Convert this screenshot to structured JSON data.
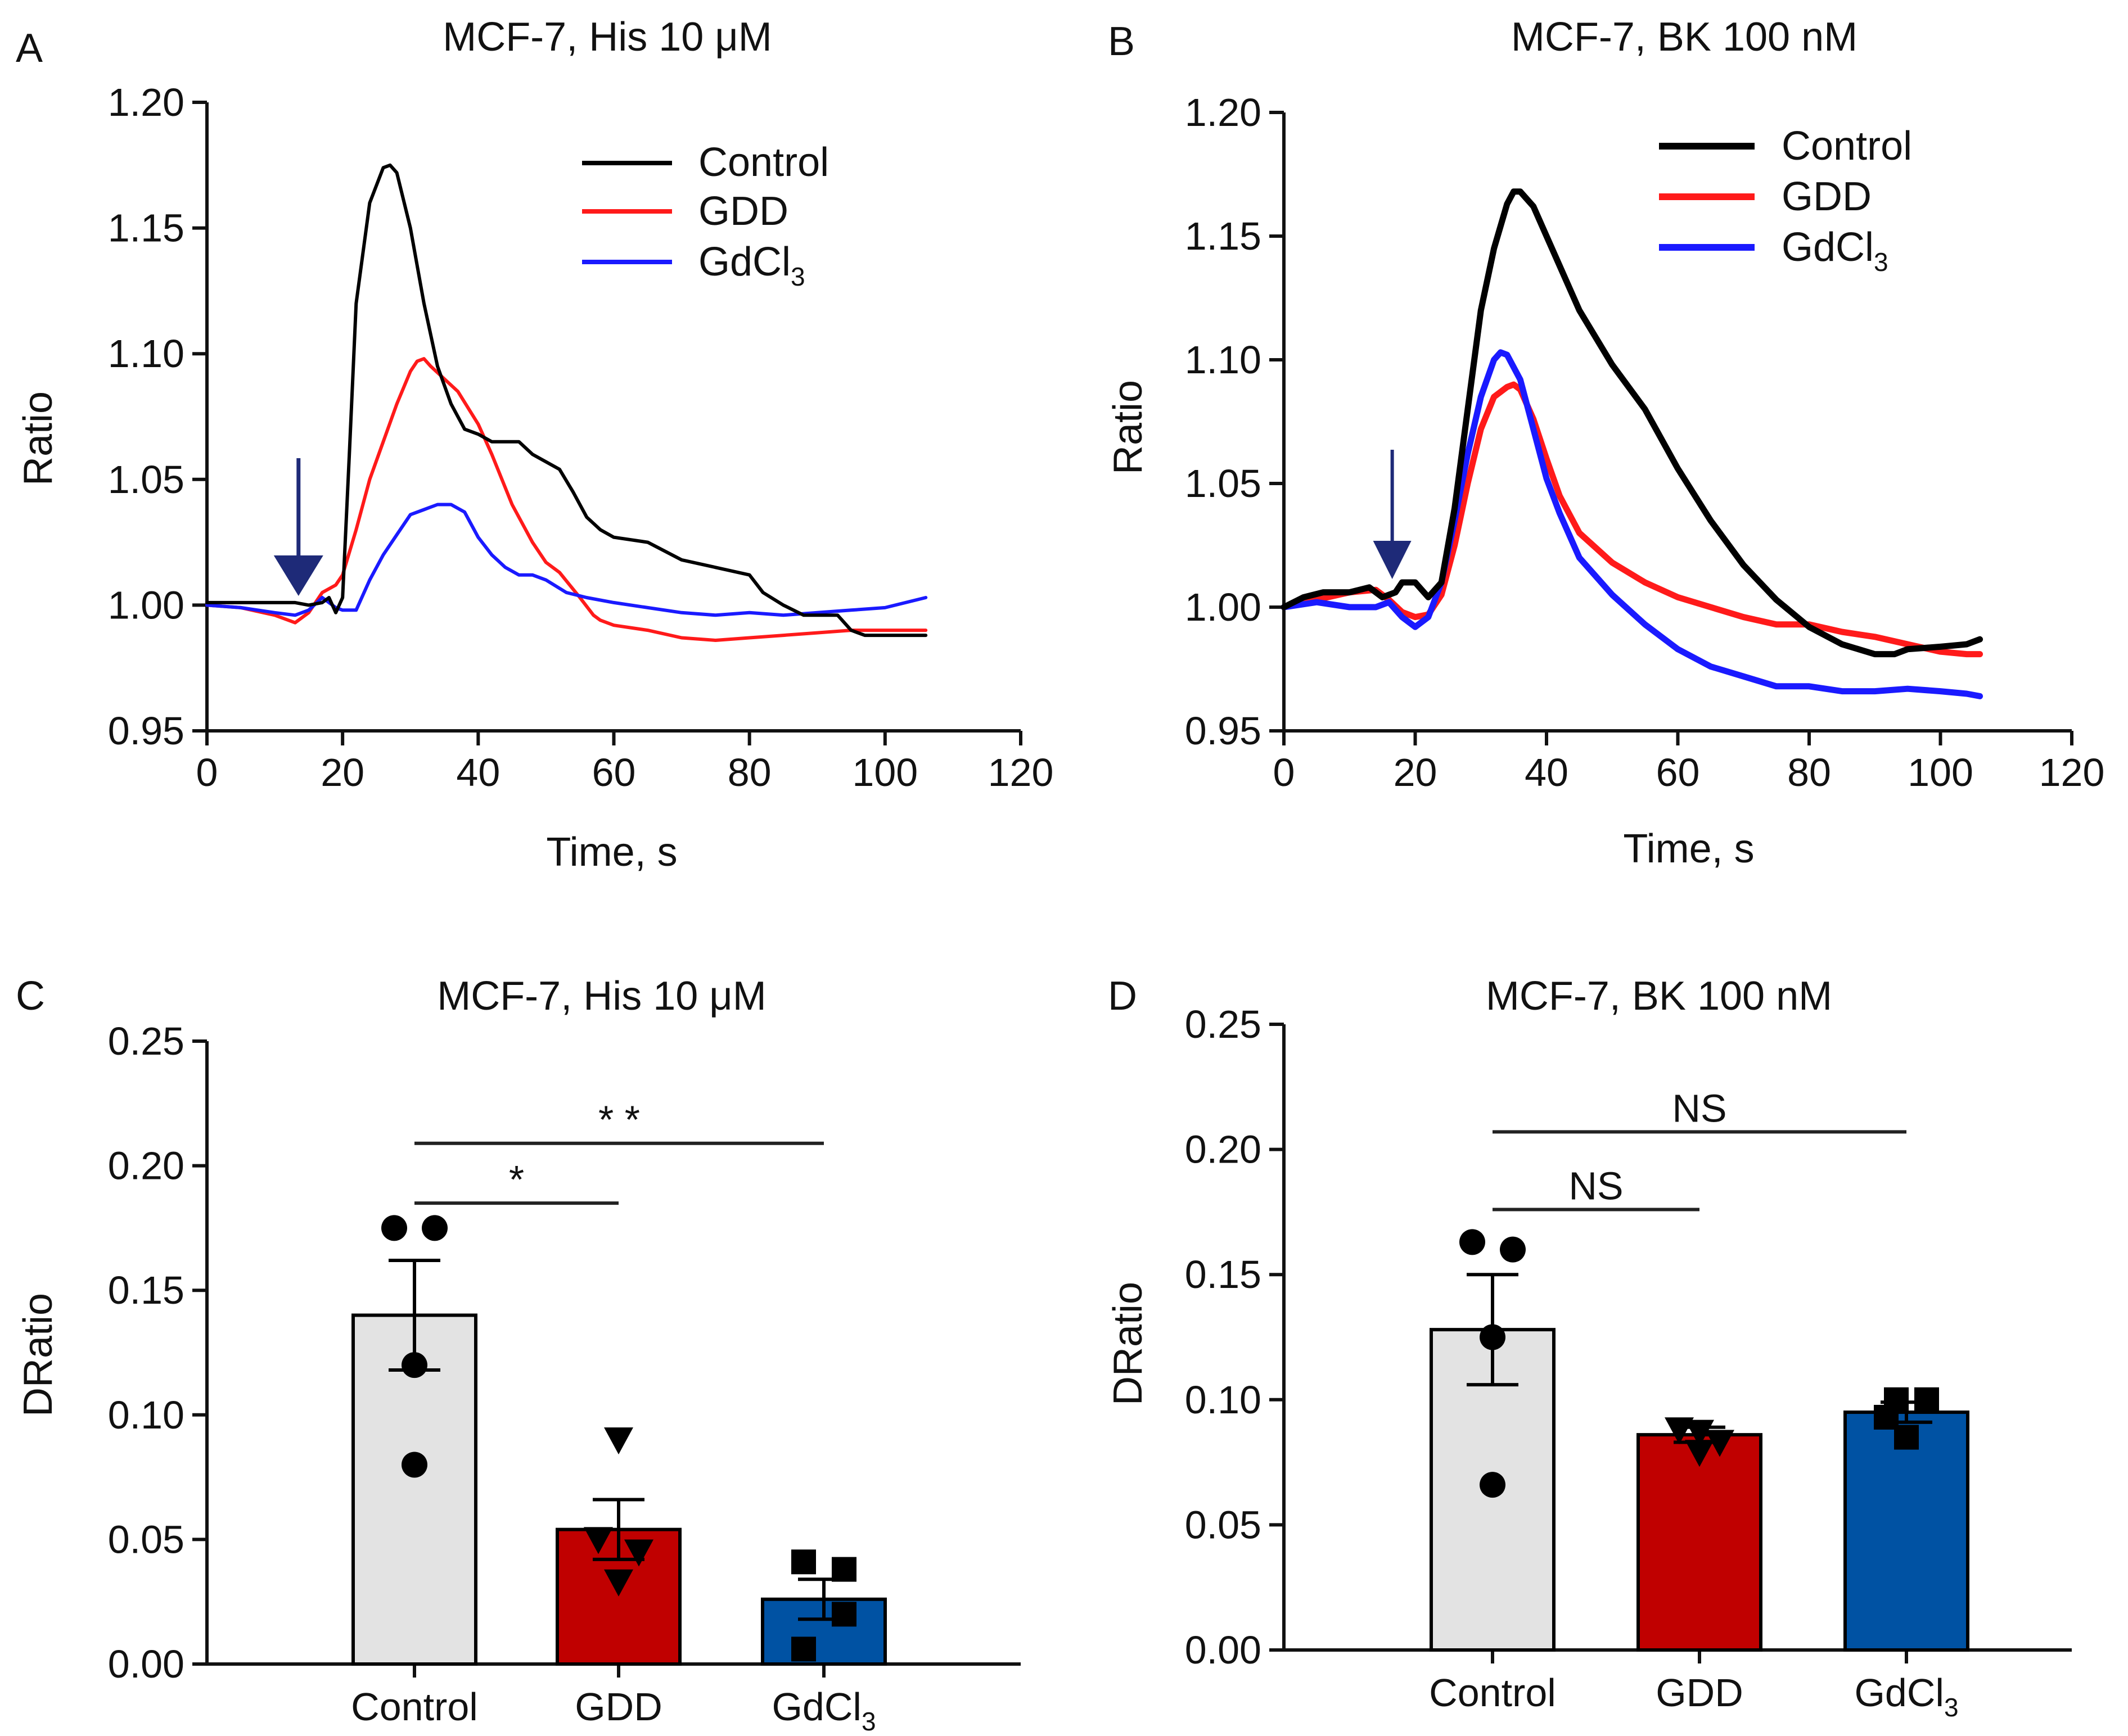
{
  "figure": {
    "colors": {
      "axis": "#111111",
      "control": "#000000",
      "gdd": "#ff1a1a",
      "gdcl3": "#1a1aff",
      "arrow": "#1e2a78",
      "bar_control": "#e3e3e3",
      "bar_gdd": "#c00000",
      "bar_gdcl3": "#0052a3",
      "sig_line": "#222222"
    }
  },
  "chart_data": [
    {
      "panel": "A",
      "type": "line",
      "title_prefix": "MCF-7, His 10 ",
      "title_unit": "μM",
      "xlabel": "Time, s",
      "ylabel": "Ratio",
      "xlim": [
        0,
        120
      ],
      "ylim": [
        0.95,
        1.2
      ],
      "xticks": [
        "0",
        "20",
        "40",
        "60",
        "80",
        "100",
        "120"
      ],
      "yticks": [
        "0.95",
        "1.00",
        "1.05",
        "1.10",
        "1.15",
        "1.20"
      ],
      "legend": {
        "position": "top-right",
        "entries": [
          "Control",
          "GDD",
          "GdCl"
        ],
        "gdcl_subscript": "3"
      },
      "stimulus_arrow_at_s": 13.5,
      "series": [
        {
          "name": "Control",
          "color_key": "control",
          "x": [
            0,
            5,
            10,
            13,
            15,
            17,
            18,
            19,
            20,
            21,
            22,
            24,
            26,
            27,
            28,
            30,
            32,
            34,
            36,
            38,
            40,
            42,
            44,
            46,
            48,
            50,
            52,
            54,
            56,
            58,
            60,
            65,
            70,
            75,
            80,
            82,
            85,
            88,
            90,
            93,
            95,
            97,
            100,
            106
          ],
          "y": [
            1.001,
            1.001,
            1.001,
            1.001,
            1.0,
            1.001,
            1.003,
            0.997,
            1.003,
            1.06,
            1.12,
            1.16,
            1.174,
            1.175,
            1.172,
            1.15,
            1.12,
            1.095,
            1.08,
            1.07,
            1.068,
            1.065,
            1.065,
            1.065,
            1.06,
            1.057,
            1.054,
            1.045,
            1.035,
            1.03,
            1.027,
            1.025,
            1.018,
            1.015,
            1.012,
            1.005,
            1.0,
            0.996,
            0.996,
            0.996,
            0.99,
            0.988,
            0.988,
            0.988
          ]
        },
        {
          "name": "GDD",
          "color_key": "gdd",
          "x": [
            0,
            5,
            10,
            13,
            15,
            17,
            19,
            20,
            22,
            24,
            26,
            28,
            30,
            31,
            32,
            33,
            35,
            37,
            40,
            42,
            45,
            48,
            50,
            52,
            55,
            57,
            58,
            60,
            65,
            70,
            75,
            80,
            85,
            90,
            95,
            100,
            106
          ],
          "y": [
            1.0,
            0.999,
            0.996,
            0.993,
            0.997,
            1.005,
            1.008,
            1.012,
            1.03,
            1.05,
            1.065,
            1.08,
            1.093,
            1.097,
            1.098,
            1.095,
            1.09,
            1.085,
            1.072,
            1.06,
            1.04,
            1.025,
            1.017,
            1.013,
            1.003,
            0.996,
            0.994,
            0.992,
            0.99,
            0.987,
            0.986,
            0.987,
            0.988,
            0.989,
            0.99,
            0.99,
            0.99
          ]
        },
        {
          "name": "GdCl3",
          "color_key": "gdcl3",
          "x": [
            0,
            5,
            10,
            13,
            15,
            17,
            18,
            19,
            20,
            22,
            24,
            26,
            28,
            30,
            32,
            34,
            36,
            38,
            40,
            42,
            44,
            46,
            48,
            50,
            53,
            56,
            60,
            65,
            70,
            75,
            80,
            85,
            90,
            95,
            100,
            106
          ],
          "y": [
            1.0,
            0.999,
            0.997,
            0.996,
            0.998,
            1.003,
            1.001,
            0.999,
            0.998,
            0.998,
            1.01,
            1.02,
            1.028,
            1.036,
            1.038,
            1.04,
            1.04,
            1.037,
            1.027,
            1.02,
            1.015,
            1.012,
            1.012,
            1.01,
            1.005,
            1.003,
            1.001,
            0.999,
            0.997,
            0.996,
            0.997,
            0.996,
            0.997,
            0.998,
            0.999,
            1.003
          ]
        }
      ]
    },
    {
      "panel": "B",
      "type": "line",
      "title_prefix": "MCF-7, BK 100 nM",
      "title_unit": "",
      "xlabel": "Time, s",
      "ylabel": "Ratio",
      "xlim": [
        0,
        120
      ],
      "ylim": [
        0.95,
        1.2
      ],
      "xticks": [
        "0",
        "20",
        "40",
        "60",
        "80",
        "100",
        "120"
      ],
      "yticks": [
        "0.95",
        "1.00",
        "1.05",
        "1.10",
        "1.15",
        "1.20"
      ],
      "legend": {
        "position": "top-right",
        "entries": [
          "Control",
          "GDD",
          "GdCl"
        ],
        "gdcl_subscript": "3"
      },
      "stimulus_arrow_at_s": 16.5,
      "series": [
        {
          "name": "Control",
          "color_key": "control",
          "x": [
            0,
            3,
            6,
            10,
            13,
            15,
            17,
            18,
            20,
            22,
            24,
            26,
            28,
            30,
            32,
            34,
            35,
            36,
            38,
            40,
            45,
            50,
            55,
            60,
            65,
            70,
            75,
            80,
            85,
            90,
            93,
            95,
            100,
            104,
            106
          ],
          "y": [
            1.0,
            1.004,
            1.006,
            1.006,
            1.008,
            1.004,
            1.006,
            1.01,
            1.01,
            1.004,
            1.01,
            1.04,
            1.08,
            1.12,
            1.145,
            1.163,
            1.168,
            1.168,
            1.162,
            1.15,
            1.12,
            1.098,
            1.08,
            1.056,
            1.035,
            1.017,
            1.003,
            0.992,
            0.985,
            0.981,
            0.981,
            0.983,
            0.984,
            0.985,
            0.987
          ]
        },
        {
          "name": "GDD",
          "color_key": "gdd",
          "x": [
            0,
            5,
            10,
            14,
            16,
            18,
            20,
            22,
            24,
            26,
            28,
            30,
            32,
            34,
            35,
            36,
            38,
            40,
            42,
            45,
            50,
            55,
            60,
            65,
            70,
            75,
            80,
            85,
            90,
            95,
            100,
            104,
            106
          ],
          "y": [
            1.0,
            1.003,
            1.006,
            1.007,
            1.003,
            0.998,
            0.996,
            0.997,
            1.005,
            1.025,
            1.05,
            1.072,
            1.085,
            1.089,
            1.09,
            1.088,
            1.076,
            1.06,
            1.045,
            1.03,
            1.018,
            1.01,
            1.004,
            1.0,
            0.996,
            0.993,
            0.993,
            0.99,
            0.988,
            0.985,
            0.982,
            0.981,
            0.981
          ]
        },
        {
          "name": "GdCl3",
          "color_key": "gdcl3",
          "x": [
            0,
            5,
            10,
            14,
            16,
            18,
            20,
            22,
            24,
            26,
            28,
            30,
            32,
            33,
            34,
            36,
            38,
            40,
            42,
            45,
            50,
            55,
            60,
            65,
            70,
            75,
            80,
            85,
            90,
            95,
            100,
            104,
            106
          ],
          "y": [
            1.0,
            1.002,
            1.0,
            1.0,
            1.002,
            0.996,
            0.992,
            0.996,
            1.01,
            1.035,
            1.062,
            1.085,
            1.1,
            1.103,
            1.102,
            1.092,
            1.072,
            1.052,
            1.038,
            1.02,
            1.005,
            0.993,
            0.983,
            0.976,
            0.972,
            0.968,
            0.968,
            0.966,
            0.966,
            0.967,
            0.966,
            0.965,
            0.964
          ]
        }
      ]
    },
    {
      "panel": "C",
      "type": "bar",
      "title_prefix": "MCF-7, His 10",
      "title_unit": "μM",
      "ylabel": "DRatio",
      "ylim": [
        0,
        0.25
      ],
      "yticks": [
        "0.00",
        "0.05",
        "0.10",
        "0.15",
        "0.20",
        "0.25"
      ],
      "categories": [
        "Control",
        "GDD",
        "GdCl"
      ],
      "gdcl_subscript": "3",
      "bars": [
        {
          "name": "Control",
          "mean": 0.14,
          "sem": 0.022,
          "color_key": "bar_control",
          "marker": "circle",
          "points": [
            0.175,
            0.175,
            0.12,
            0.08
          ],
          "jitter": [
            -1,
            1,
            0,
            0
          ]
        },
        {
          "name": "GDD",
          "mean": 0.054,
          "sem": 0.012,
          "color_key": "bar_gdd",
          "marker": "triangle",
          "points": [
            0.09,
            0.05,
            0.045,
            0.033
          ],
          "jitter": [
            0,
            -1,
            1,
            0
          ]
        },
        {
          "name": "GdCl3",
          "mean": 0.026,
          "sem": 0.008,
          "color_key": "bar_gdcl3",
          "marker": "square",
          "points": [
            0.041,
            0.038,
            0.02,
            0.006
          ],
          "jitter": [
            -1,
            1,
            1,
            -1
          ]
        }
      ],
      "significance": [
        {
          "from": 0,
          "to": 1,
          "y": 0.185,
          "label": "*"
        },
        {
          "from": 0,
          "to": 2,
          "y": 0.209,
          "label": "* *"
        }
      ]
    },
    {
      "panel": "D",
      "type": "bar",
      "title_prefix": "MCF-7, BK 100 nM",
      "title_unit": "",
      "ylabel": "DRatio",
      "ylim": [
        0,
        0.25
      ],
      "yticks": [
        "0.00",
        "0.05",
        "0.10",
        "0.15",
        "0.20",
        "0.25"
      ],
      "categories": [
        "Control",
        "GDD",
        "GdCl"
      ],
      "gdcl_subscript": "3",
      "bars": [
        {
          "name": "Control",
          "mean": 0.128,
          "sem": 0.022,
          "color_key": "bar_control",
          "marker": "circle",
          "points": [
            0.163,
            0.16,
            0.125,
            0.066
          ],
          "jitter": [
            -1,
            1,
            0,
            0
          ]
        },
        {
          "name": "GDD",
          "mean": 0.086,
          "sem": 0.003,
          "color_key": "bar_gdd",
          "marker": "triangle",
          "points": [
            0.088,
            0.087,
            0.083,
            0.079
          ],
          "jitter": [
            -1,
            0,
            1,
            0
          ]
        },
        {
          "name": "GdCl3",
          "mean": 0.095,
          "sem": 0.004,
          "color_key": "bar_gdcl3",
          "marker": "square",
          "points": [
            0.1,
            0.1,
            0.093,
            0.085
          ],
          "jitter": [
            -0.5,
            1,
            -1,
            0
          ]
        }
      ],
      "significance": [
        {
          "from": 0,
          "to": 1,
          "y": 0.176,
          "label": "NS"
        },
        {
          "from": 0,
          "to": 2,
          "y": 0.207,
          "label": "NS"
        }
      ]
    }
  ]
}
